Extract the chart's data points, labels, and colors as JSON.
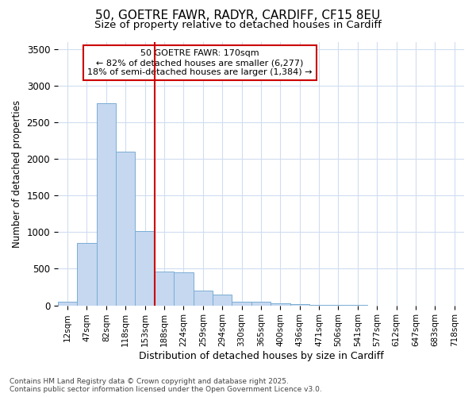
{
  "title_line1": "50, GOETRE FAWR, RADYR, CARDIFF, CF15 8EU",
  "title_line2": "Size of property relative to detached houses in Cardiff",
  "xlabel": "Distribution of detached houses by size in Cardiff",
  "ylabel": "Number of detached properties",
  "categories": [
    "12sqm",
    "47sqm",
    "82sqm",
    "118sqm",
    "153sqm",
    "188sqm",
    "224sqm",
    "259sqm",
    "294sqm",
    "330sqm",
    "365sqm",
    "400sqm",
    "436sqm",
    "471sqm",
    "506sqm",
    "541sqm",
    "577sqm",
    "612sqm",
    "647sqm",
    "683sqm",
    "718sqm"
  ],
  "values": [
    55,
    850,
    2760,
    2100,
    1020,
    460,
    450,
    200,
    150,
    55,
    55,
    30,
    15,
    8,
    3,
    2,
    1,
    1,
    0,
    0,
    0
  ],
  "bar_color": "#c5d8f0",
  "bar_edge_color": "#7aadd4",
  "vline_x_index": 5,
  "vline_color": "#cc0000",
  "ylim": [
    0,
    3600
  ],
  "yticks": [
    0,
    500,
    1000,
    1500,
    2000,
    2500,
    3000,
    3500
  ],
  "annotation_title": "50 GOETRE FAWR: 170sqm",
  "annotation_line2": "← 82% of detached houses are smaller (6,277)",
  "annotation_line3": "18% of semi-detached houses are larger (1,384) →",
  "annotation_box_color": "#cc0000",
  "footer_line1": "Contains HM Land Registry data © Crown copyright and database right 2025.",
  "footer_line2": "Contains public sector information licensed under the Open Government Licence v3.0.",
  "bg_color": "#ffffff",
  "plot_bg_color": "#ffffff",
  "grid_color": "#d0ddf0"
}
